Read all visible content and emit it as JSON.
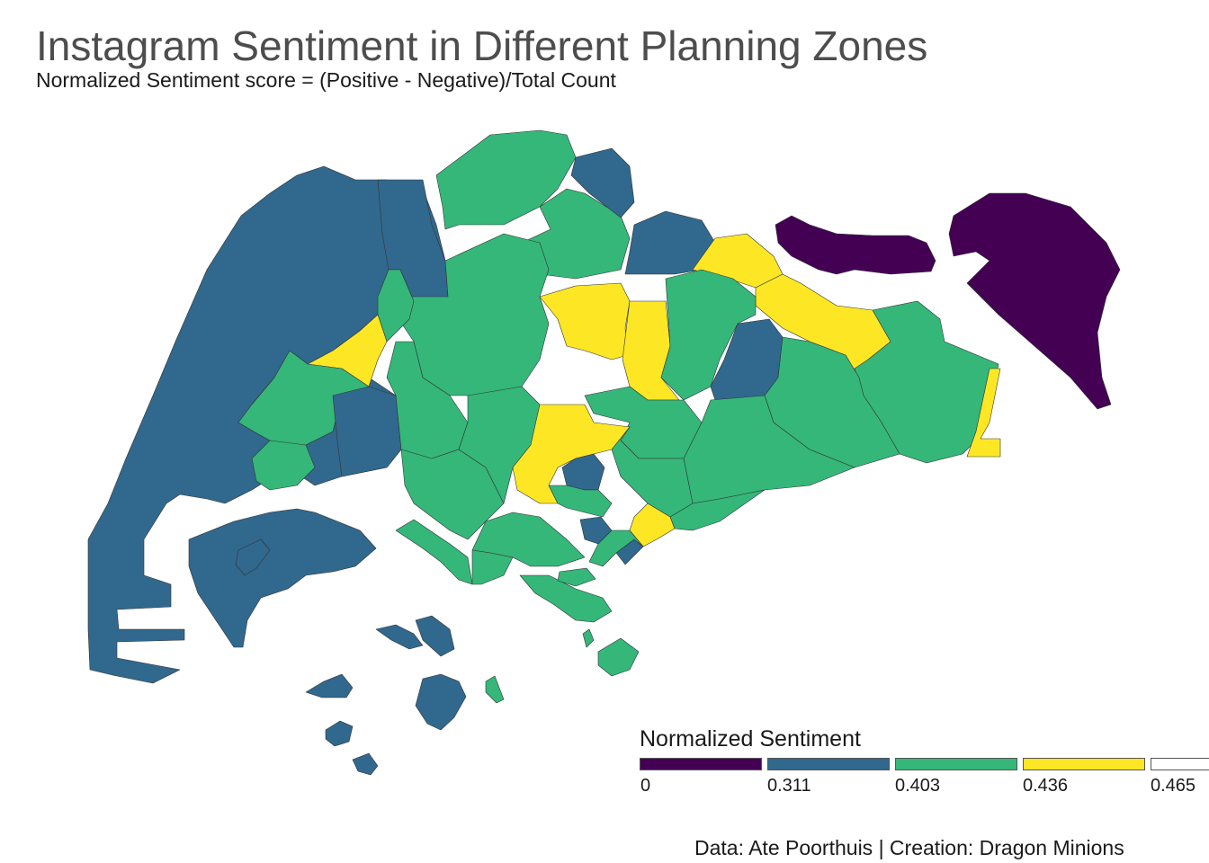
{
  "title": "Instagram Sentiment in Different Planning Zones",
  "subtitle": "Normalized Sentiment score = (Positive - Negative)/Total Count",
  "caption": "Data: Ate Poorthuis | Creation: Dragon Minions",
  "legend": {
    "title": "Normalized Sentiment",
    "items": [
      {
        "label": "0",
        "color": "#440154"
      },
      {
        "label": "0.311",
        "color": "#31688e"
      },
      {
        "label": "0.403",
        "color": "#35b779"
      },
      {
        "label": "0.436",
        "color": "#fde725"
      },
      {
        "label": "0.465",
        "color": "#ffffff"
      }
    ]
  },
  "colors": {
    "purple": "#440154",
    "blue": "#31688e",
    "green": "#35b779",
    "yellow": "#fde725",
    "border": "#333333"
  }
}
